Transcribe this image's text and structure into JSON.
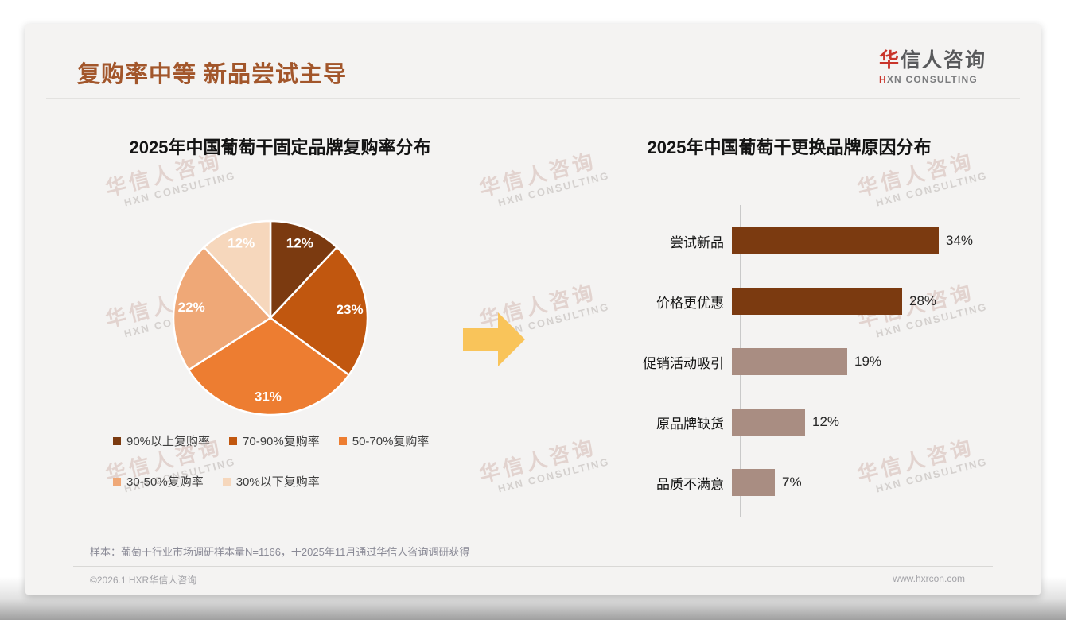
{
  "page": {
    "title": "复购率中等 新品尝试主导",
    "logo": {
      "zh_accent": "华",
      "zh_rest": "信人咨询",
      "en_accent": "H",
      "en_rest": "XN CONSULTING"
    },
    "watermark": {
      "line1": "华信人咨询",
      "line2": "HXN CONSULTING"
    },
    "footnote": "样本：葡萄干行业市场调研样本量N=1166，于2025年11月通过华信人咨询调研获得",
    "footer": {
      "copyright": "©2026.1 HXR华信人咨询",
      "website": "www.hxrcon.com"
    }
  },
  "colors": {
    "title_accent": "#a2562b",
    "logo_red": "#c9342a",
    "arrow": "#f9c45a",
    "axis_line": "#c9c9c9",
    "slide_background": "#f4f3f2"
  },
  "chart_data": [
    {
      "type": "pie",
      "title": "2025年中国葡萄干固定品牌复购率分布",
      "labels": [
        "90%以上复购率",
        "70-90%复购率",
        "50-70%复购率",
        "30-50%复购率",
        "30%以下复购率"
      ],
      "values": [
        12,
        23,
        31,
        22,
        12
      ],
      "data_labels": [
        "12%",
        "23%",
        "31%",
        "22%",
        "12%"
      ],
      "colors": [
        "#7b3a10",
        "#c1570f",
        "#ed7d31",
        "#efa877",
        "#f6d7bc"
      ],
      "start_angle_deg": 0,
      "direction": "clockwise",
      "legend_position": "bottom",
      "label_color": "#ffffff"
    },
    {
      "type": "bar",
      "orientation": "horizontal",
      "title": "2025年中国葡萄干更换品牌原因分布",
      "categories": [
        "尝试新品",
        "价格更优惠",
        "促销活动吸引",
        "原品牌缺货",
        "品质不满意"
      ],
      "values": [
        34,
        28,
        19,
        12,
        7
      ],
      "data_labels": [
        "34%",
        "28%",
        "19%",
        "12%",
        "7%"
      ],
      "colors": [
        "#7b3a10",
        "#7b3a10",
        "#a98d82",
        "#a98d82",
        "#a98d82"
      ],
      "xlim": [
        0,
        40
      ],
      "value_suffix": "%",
      "grid": false,
      "legend_position": "none"
    }
  ]
}
